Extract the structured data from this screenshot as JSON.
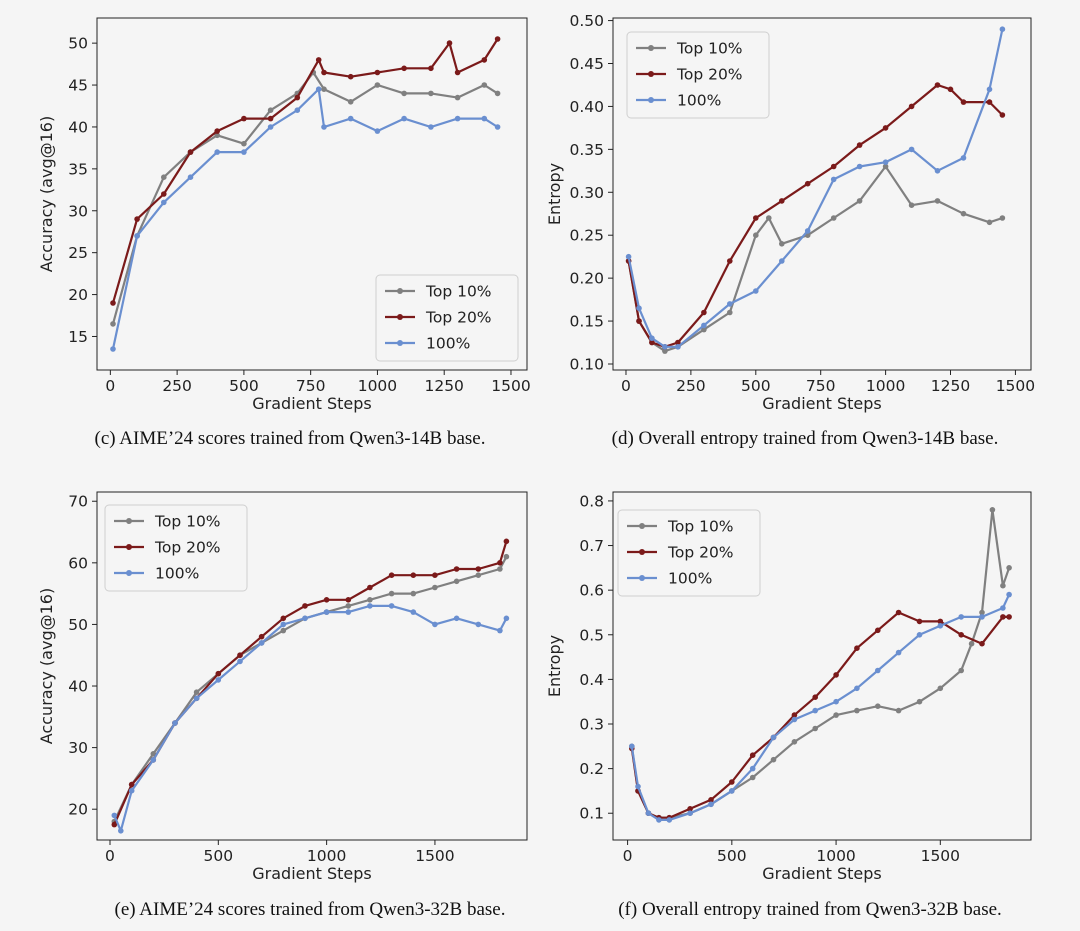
{
  "series_styles": [
    {
      "name": "Top 10%",
      "color": "#808080"
    },
    {
      "name": "Top 20%",
      "color": "#7b1a1a"
    },
    {
      "name": "100%",
      "color": "#6a8fd0"
    }
  ],
  "chart_data": [
    {
      "type": "line",
      "panel": "c",
      "caption": "(c) AIME’24 scores trained from Qwen3-14B base.",
      "xlabel": "Gradient Steps",
      "ylabel": "Accuracy (avg@16)",
      "xlim": [
        -50,
        1560
      ],
      "ylim": [
        11,
        53
      ],
      "xticks": [
        0,
        250,
        500,
        750,
        1000,
        1250,
        1500
      ],
      "yticks": [
        15,
        20,
        25,
        30,
        35,
        40,
        45,
        50
      ],
      "tick_labels_x": [
        "0",
        "250",
        "500",
        "750",
        "1000",
        "1250",
        "1500"
      ],
      "tick_labels_y": [
        "15",
        "20",
        "25",
        "30",
        "35",
        "40",
        "45",
        "50"
      ],
      "grid": false,
      "legend": {
        "position": "lower-right",
        "entries": [
          "Top 10%",
          "Top 20%",
          "100%"
        ]
      },
      "series": [
        {
          "name": "Top 10%",
          "x": [
            10,
            100,
            200,
            300,
            400,
            500,
            600,
            700,
            760,
            800,
            900,
            1000,
            1100,
            1200,
            1300,
            1400,
            1450
          ],
          "y": [
            16.5,
            27,
            34,
            37,
            39,
            38,
            42,
            44,
            46.5,
            44.5,
            43,
            45,
            44,
            44,
            43.5,
            45,
            44
          ]
        },
        {
          "name": "Top 20%",
          "x": [
            10,
            100,
            200,
            300,
            400,
            500,
            600,
            700,
            780,
            800,
            900,
            1000,
            1100,
            1200,
            1270,
            1300,
            1400,
            1450
          ],
          "y": [
            19,
            29,
            32,
            37,
            39.5,
            41,
            41,
            43.5,
            48,
            46.5,
            46,
            46.5,
            47,
            47,
            50,
            46.5,
            48,
            50.5
          ]
        },
        {
          "name": "100%",
          "x": [
            10,
            100,
            200,
            300,
            400,
            500,
            600,
            700,
            780,
            800,
            900,
            1000,
            1100,
            1200,
            1300,
            1400,
            1450
          ],
          "y": [
            13.5,
            27,
            31,
            34,
            37,
            37,
            40,
            42,
            44.5,
            40,
            41,
            39.5,
            41,
            40,
            41,
            41,
            40
          ]
        }
      ]
    },
    {
      "type": "line",
      "panel": "d",
      "caption": "(d) Overall entropy trained from Qwen3-14B base.",
      "xlabel": "Gradient Steps",
      "ylabel": "Entropy",
      "xlim": [
        -50,
        1560
      ],
      "ylim": [
        0.093,
        0.503
      ],
      "xticks": [
        0,
        250,
        500,
        750,
        1000,
        1250,
        1500
      ],
      "yticks": [
        0.1,
        0.15,
        0.2,
        0.25,
        0.3,
        0.35,
        0.4,
        0.45,
        0.5
      ],
      "tick_labels_x": [
        "0",
        "250",
        "500",
        "750",
        "1000",
        "1250",
        "1500"
      ],
      "tick_labels_y": [
        "0.10",
        "0.15",
        "0.20",
        "0.25",
        "0.30",
        "0.35",
        "0.40",
        "0.45",
        "0.50"
      ],
      "grid": false,
      "legend": {
        "position": "upper-left",
        "entries": [
          "Top 10%",
          "Top 20%",
          "100%"
        ]
      },
      "series": [
        {
          "name": "Top 10%",
          "x": [
            10,
            50,
            100,
            150,
            200,
            300,
            400,
            500,
            550,
            600,
            700,
            800,
            900,
            1000,
            1100,
            1200,
            1300,
            1400,
            1450
          ],
          "y": [
            0.22,
            0.15,
            0.125,
            0.115,
            0.12,
            0.14,
            0.16,
            0.25,
            0.27,
            0.24,
            0.25,
            0.27,
            0.29,
            0.33,
            0.285,
            0.29,
            0.275,
            0.265,
            0.27
          ]
        },
        {
          "name": "Top 20%",
          "x": [
            10,
            50,
            100,
            150,
            200,
            300,
            400,
            500,
            600,
            700,
            800,
            900,
            1000,
            1100,
            1200,
            1250,
            1300,
            1400,
            1450
          ],
          "y": [
            0.22,
            0.15,
            0.125,
            0.12,
            0.125,
            0.16,
            0.22,
            0.27,
            0.29,
            0.31,
            0.33,
            0.355,
            0.375,
            0.4,
            0.425,
            0.42,
            0.405,
            0.405,
            0.39
          ]
        },
        {
          "name": "100%",
          "x": [
            10,
            50,
            100,
            150,
            200,
            300,
            400,
            500,
            600,
            700,
            800,
            900,
            1000,
            1100,
            1200,
            1300,
            1400,
            1450
          ],
          "y": [
            0.225,
            0.165,
            0.13,
            0.12,
            0.12,
            0.145,
            0.17,
            0.185,
            0.22,
            0.255,
            0.315,
            0.33,
            0.335,
            0.35,
            0.325,
            0.34,
            0.42,
            0.49
          ]
        }
      ]
    },
    {
      "type": "line",
      "panel": "e",
      "caption": "(e) AIME’24 scores trained from Qwen3-32B base.",
      "xlabel": "Gradient Steps",
      "ylabel": "Accuracy (avg@16)",
      "xlim": [
        -60,
        1925
      ],
      "ylim": [
        15,
        71.5
      ],
      "xticks": [
        0,
        500,
        1000,
        1500
      ],
      "yticks": [
        20,
        30,
        40,
        50,
        60,
        70
      ],
      "tick_labels_x": [
        "0",
        "500",
        "1000",
        "1500"
      ],
      "tick_labels_y": [
        "20",
        "30",
        "40",
        "50",
        "60",
        "70"
      ],
      "grid": false,
      "legend": {
        "position": "upper-left",
        "entries": [
          "Top 10%",
          "Top 20%",
          "100%"
        ]
      },
      "series": [
        {
          "name": "Top 10%",
          "x": [
            20,
            100,
            200,
            300,
            400,
            500,
            600,
            700,
            800,
            900,
            1000,
            1100,
            1200,
            1300,
            1400,
            1500,
            1600,
            1700,
            1800,
            1830
          ],
          "y": [
            18,
            24,
            29,
            34,
            39,
            42,
            45,
            47,
            49,
            51,
            52,
            53,
            54,
            55,
            55,
            56,
            57,
            58,
            59,
            61
          ]
        },
        {
          "name": "Top 20%",
          "x": [
            20,
            100,
            200,
            300,
            400,
            500,
            600,
            700,
            800,
            900,
            1000,
            1100,
            1200,
            1300,
            1400,
            1500,
            1600,
            1700,
            1800,
            1830
          ],
          "y": [
            17.5,
            24,
            28,
            34,
            38,
            42,
            45,
            48,
            51,
            53,
            54,
            54,
            56,
            58,
            58,
            58,
            59,
            59,
            60,
            63.5
          ]
        },
        {
          "name": "100%",
          "x": [
            20,
            50,
            100,
            200,
            300,
            400,
            500,
            600,
            700,
            800,
            900,
            1000,
            1100,
            1200,
            1300,
            1400,
            1500,
            1600,
            1700,
            1800,
            1830
          ],
          "y": [
            19,
            16.5,
            23,
            28,
            34,
            38,
            41,
            44,
            47,
            50,
            51,
            52,
            52,
            53,
            53,
            52,
            50,
            51,
            50,
            49,
            51
          ]
        }
      ]
    },
    {
      "type": "line",
      "panel": "f",
      "caption": "(f) Overall entropy trained from Qwen3-32B base.",
      "xlabel": "Gradient Steps",
      "ylabel": "Entropy",
      "xlim": [
        -70,
        1935
      ],
      "ylim": [
        0.04,
        0.82
      ],
      "xticks": [
        0,
        500,
        1000,
        1500
      ],
      "yticks": [
        0.1,
        0.2,
        0.3,
        0.4,
        0.5,
        0.6,
        0.7,
        0.8
      ],
      "tick_labels_x": [
        "0",
        "500",
        "1000",
        "1500"
      ],
      "tick_labels_y": [
        "0.1",
        "0.2",
        "0.3",
        "0.4",
        "0.5",
        "0.6",
        "0.7",
        "0.8"
      ],
      "grid": false,
      "legend": {
        "position": "upper-left",
        "entries": [
          "Top 10%",
          "Top 20%",
          "100%"
        ]
      },
      "series": [
        {
          "name": "Top 10%",
          "x": [
            20,
            50,
            100,
            150,
            200,
            300,
            400,
            500,
            600,
            700,
            800,
            900,
            1000,
            1100,
            1200,
            1300,
            1400,
            1500,
            1600,
            1650,
            1700,
            1750,
            1800,
            1830
          ],
          "y": [
            0.25,
            0.15,
            0.1,
            0.09,
            0.09,
            0.1,
            0.12,
            0.15,
            0.18,
            0.22,
            0.26,
            0.29,
            0.32,
            0.33,
            0.34,
            0.33,
            0.35,
            0.38,
            0.42,
            0.48,
            0.55,
            0.78,
            0.61,
            0.65
          ]
        },
        {
          "name": "Top 20%",
          "x": [
            20,
            50,
            100,
            150,
            200,
            300,
            400,
            500,
            600,
            700,
            800,
            900,
            1000,
            1100,
            1200,
            1300,
            1400,
            1500,
            1600,
            1700,
            1800,
            1830
          ],
          "y": [
            0.245,
            0.15,
            0.1,
            0.09,
            0.09,
            0.11,
            0.13,
            0.17,
            0.23,
            0.27,
            0.32,
            0.36,
            0.41,
            0.47,
            0.51,
            0.55,
            0.53,
            0.53,
            0.5,
            0.48,
            0.54,
            0.54
          ]
        },
        {
          "name": "100%",
          "x": [
            20,
            50,
            100,
            150,
            200,
            300,
            400,
            500,
            600,
            700,
            800,
            900,
            1000,
            1100,
            1200,
            1300,
            1400,
            1500,
            1600,
            1700,
            1800,
            1830
          ],
          "y": [
            0.25,
            0.16,
            0.1,
            0.085,
            0.085,
            0.1,
            0.12,
            0.15,
            0.2,
            0.27,
            0.31,
            0.33,
            0.35,
            0.38,
            0.42,
            0.46,
            0.5,
            0.52,
            0.54,
            0.54,
            0.56,
            0.59
          ]
        }
      ]
    }
  ]
}
